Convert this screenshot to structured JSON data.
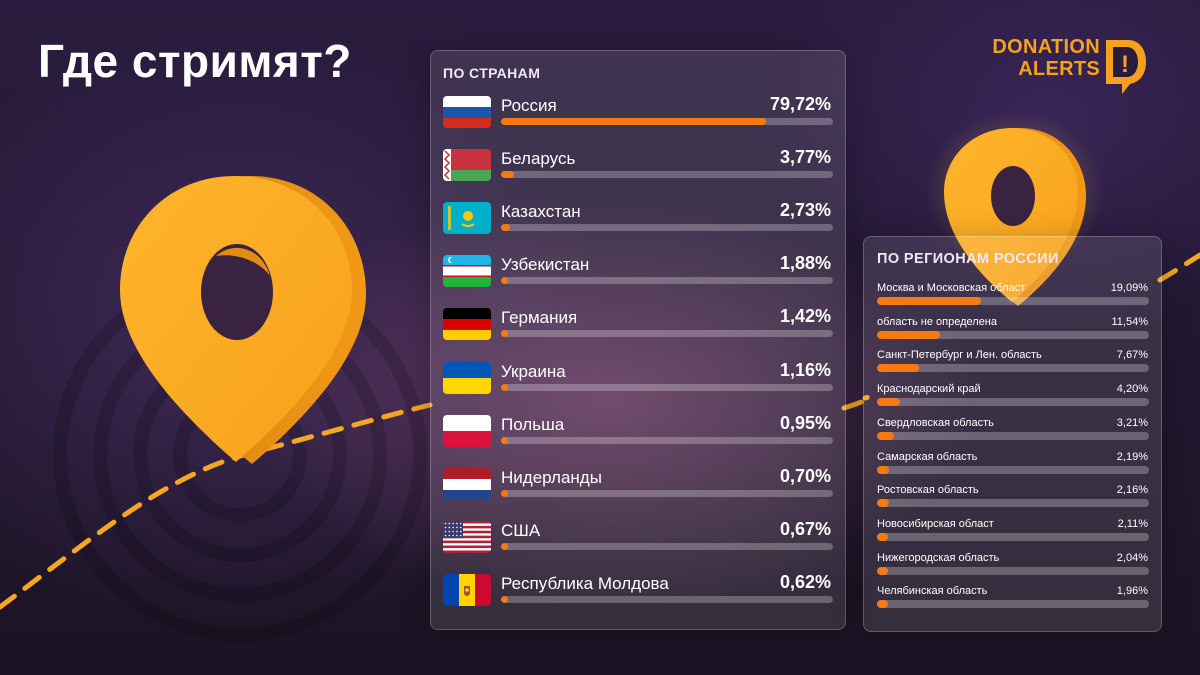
{
  "title": "Где стримят?",
  "logo": {
    "line1": "DONATION",
    "line2": "ALERTS",
    "mark_glyph": "!"
  },
  "colors": {
    "accent": "#f57a14",
    "logo": "#f6a11d",
    "pin": "#f9a825"
  },
  "chart_data": [
    {
      "type": "bar",
      "title": "ПО СТРАНАМ",
      "unit": "%",
      "xlim": [
        0,
        100
      ],
      "rows": [
        {
          "name": "Россия",
          "value": 79.72,
          "label": "79,72%",
          "flag_icon": "russia-flag-icon"
        },
        {
          "name": "Беларусь",
          "value": 3.77,
          "label": "3,77%",
          "flag_icon": "belarus-flag-icon"
        },
        {
          "name": "Казахстан",
          "value": 2.73,
          "label": "2,73%",
          "flag_icon": "kazakhstan-flag-icon"
        },
        {
          "name": "Узбекистан",
          "value": 1.88,
          "label": "1,88%",
          "flag_icon": "uzbekistan-flag-icon"
        },
        {
          "name": "Германия",
          "value": 1.42,
          "label": "1,42%",
          "flag_icon": "germany-flag-icon"
        },
        {
          "name": "Украина",
          "value": 1.16,
          "label": "1,16%",
          "flag_icon": "ukraine-flag-icon"
        },
        {
          "name": "Польша",
          "value": 0.95,
          "label": "0,95%",
          "flag_icon": "poland-flag-icon"
        },
        {
          "name": "Нидерланды",
          "value": 0.7,
          "label": "0,70%",
          "flag_icon": "netherlands-flag-icon"
        },
        {
          "name": "США",
          "value": 0.67,
          "label": "0,67%",
          "flag_icon": "usa-flag-icon"
        },
        {
          "name": "Республика Молдова",
          "value": 0.62,
          "label": "0,62%",
          "flag_icon": "moldova-flag-icon"
        }
      ]
    },
    {
      "type": "bar",
      "title": "ПО РЕГИОНАМ РОССИИ",
      "unit": "%",
      "xlim": [
        0,
        50
      ],
      "rows": [
        {
          "name": "Москва и Московская област",
          "value": 19.09,
          "label": "19,09%"
        },
        {
          "name": "область не определена",
          "value": 11.54,
          "label": "11,54%"
        },
        {
          "name": "Санкт-Петербург и Лен. область",
          "value": 7.67,
          "label": "7,67%"
        },
        {
          "name": "Краснодарский край",
          "value": 4.2,
          "label": "4,20%"
        },
        {
          "name": "Свердловская область",
          "value": 3.21,
          "label": "3,21%"
        },
        {
          "name": "Самарская область",
          "value": 2.19,
          "label": "2,19%"
        },
        {
          "name": "Ростовская область",
          "value": 2.16,
          "label": "2,16%"
        },
        {
          "name": "Новосибирская област",
          "value": 2.11,
          "label": "2,11%"
        },
        {
          "name": "Нижегородская область",
          "value": 2.04,
          "label": "2,04%"
        },
        {
          "name": "Челябинская область",
          "value": 1.96,
          "label": "1,96%"
        }
      ]
    }
  ]
}
